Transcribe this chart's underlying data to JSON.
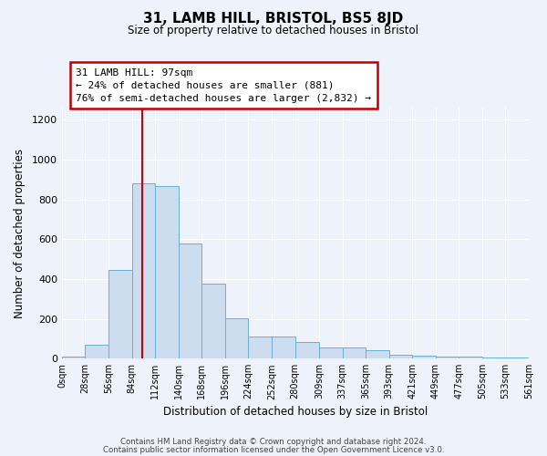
{
  "title": "31, LAMB HILL, BRISTOL, BS5 8JD",
  "subtitle": "Size of property relative to detached houses in Bristol",
  "xlabel": "Distribution of detached houses by size in Bristol",
  "ylabel": "Number of detached properties",
  "bar_color": "#ccddf0",
  "bar_edge_color": "#6baed6",
  "background_color": "#eef2fa",
  "grid_color": "#ffffff",
  "annotation_box_edge": "#c00000",
  "vline_color": "#cc0000",
  "vline_x": 97,
  "bin_edges": [
    0,
    28,
    56,
    84,
    112,
    140,
    168,
    196,
    224,
    252,
    280,
    309,
    337,
    365,
    393,
    421,
    449,
    477,
    505,
    533,
    561
  ],
  "bar_heights": [
    10,
    68,
    445,
    882,
    865,
    578,
    378,
    203,
    112,
    112,
    83,
    56,
    56,
    40,
    18,
    15,
    12,
    8,
    5,
    5
  ],
  "annotation_line1": "31 LAMB HILL: 97sqm",
  "annotation_line2": "← 24% of detached houses are smaller (881)",
  "annotation_line3": "76% of semi-detached houses are larger (2,832) →",
  "ylim": [
    0,
    1260
  ],
  "yticks": [
    0,
    200,
    400,
    600,
    800,
    1000,
    1200
  ],
  "footer_line1": "Contains HM Land Registry data © Crown copyright and database right 2024.",
  "footer_line2": "Contains public sector information licensed under the Open Government Licence v3.0."
}
